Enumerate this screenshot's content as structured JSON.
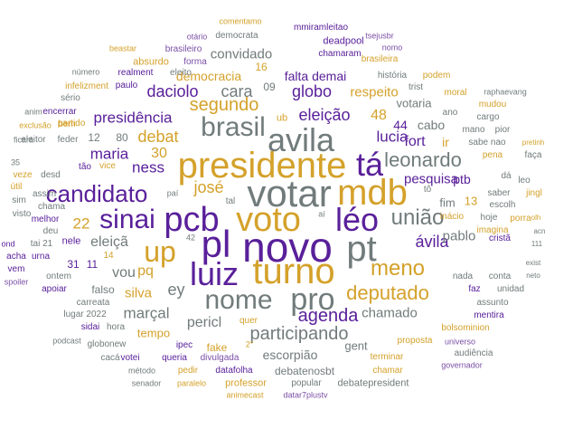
{
  "palette": {
    "gold": "#d4a12a",
    "purple": "#59209a",
    "gray": "#717b7b",
    "lavender": "#7a4ea6"
  },
  "words": [
    "presidente",
    "votar",
    "pcb",
    "voto",
    "novo",
    "pl",
    "pt",
    "turno",
    "up",
    "luiz",
    "nome",
    "pro",
    "mdb",
    "avila",
    "tá",
    "sinai",
    "léo",
    "brasil",
    "candidato",
    "união",
    "leonardo",
    "meno",
    "deputado",
    "agenda",
    "participando",
    "eleição",
    "segundo",
    "globo",
    "daciolo",
    "cara",
    "democracia",
    "convidado",
    "falta demai",
    "respeito",
    "presidência",
    "debat",
    "maria",
    "ness",
    "30",
    "josé",
    "22",
    "silva",
    "ey",
    "vou",
    "pq",
    "eleiçã",
    "marçal",
    "pericl",
    "chamado",
    "escorpião",
    "debatenosbt",
    "gent",
    "fake",
    "tempo",
    "ávila",
    "pablo",
    "pesquisa",
    "fort",
    "ir",
    "ptb",
    "fim",
    "13",
    "lucia",
    "48",
    "44",
    "cabo",
    "votaria",
    "mmiramleitao",
    "deadpool",
    "chamaram",
    "brasileira",
    "democrata",
    "brasileiro",
    "forma",
    "absurdo",
    "realment",
    "eleito",
    "paulo",
    "infelizment",
    "sério",
    "encerrar",
    "partido",
    "exclusão",
    "bem",
    "eleitor",
    "feder",
    "história",
    "podem",
    "trist",
    "moral",
    "mudou",
    "cargo",
    "mano",
    "pior",
    "sabe nao",
    "faça",
    "pena",
    "dá",
    "leo",
    "saber",
    "jingl",
    "inácio",
    "hoje",
    "porra",
    "imagina",
    "escolh",
    "cristã",
    "unidad",
    "assunto",
    "mentira",
    "bolsominion",
    "proposta",
    "audiência",
    "governador",
    "universo",
    "terminar",
    "chamar",
    "professor",
    "popular",
    "debatepresident",
    "datafolha",
    "pedir",
    "divulgada",
    "queria",
    "votei",
    "cacá",
    "ipec",
    "globonew",
    "hora",
    "sidai",
    "lugar 2022",
    "carreata",
    "apoiar",
    "ontem",
    "vem",
    "acha",
    "urna",
    "tai 21",
    "deu",
    "melhor",
    "nele",
    "chama",
    "assim",
    "veze",
    "desd",
    "tão",
    "vice",
    "12",
    "80",
    "11",
    "31",
    "14",
    "falso",
    "nada",
    "conta",
    "faz",
    "quer",
    "método",
    "senador",
    "paralelo",
    "animecast",
    "datar7plustv",
    "podcast",
    "spoiler",
    "otário",
    "comentamo",
    "tsejusbr",
    "nomo",
    "beastar",
    "número",
    "anim",
    "ficará",
    "35",
    "útil",
    "sim",
    "visto",
    "ond",
    "raphaevang",
    "ub",
    "16",
    "09",
    "42",
    "2°",
    "tal",
    "paí",
    "aí",
    "pretinh",
    "olh",
    "acn",
    "111",
    "exist",
    "neto",
    "tô",
    "ano"
  ]
}
